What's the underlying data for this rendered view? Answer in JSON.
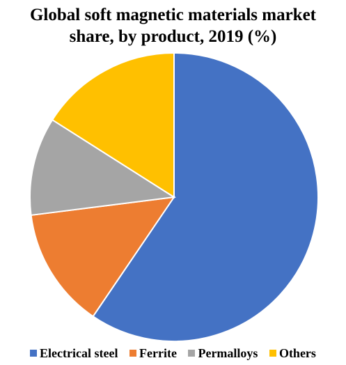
{
  "chart_data": {
    "type": "pie",
    "title_lines": [
      "Global soft magnetic materials market",
      "share, by product, 2019 (%)"
    ],
    "series": [
      {
        "name": "Electrical steel",
        "value": 59.5,
        "color": "#4472C4"
      },
      {
        "name": "Ferrite",
        "value": 13.5,
        "color": "#ED7D31"
      },
      {
        "name": "Permalloys",
        "value": 11.0,
        "color": "#A5A5A5"
      },
      {
        "name": "Others",
        "value": 16.0,
        "color": "#FFC000"
      }
    ],
    "legend_position": "bottom"
  }
}
